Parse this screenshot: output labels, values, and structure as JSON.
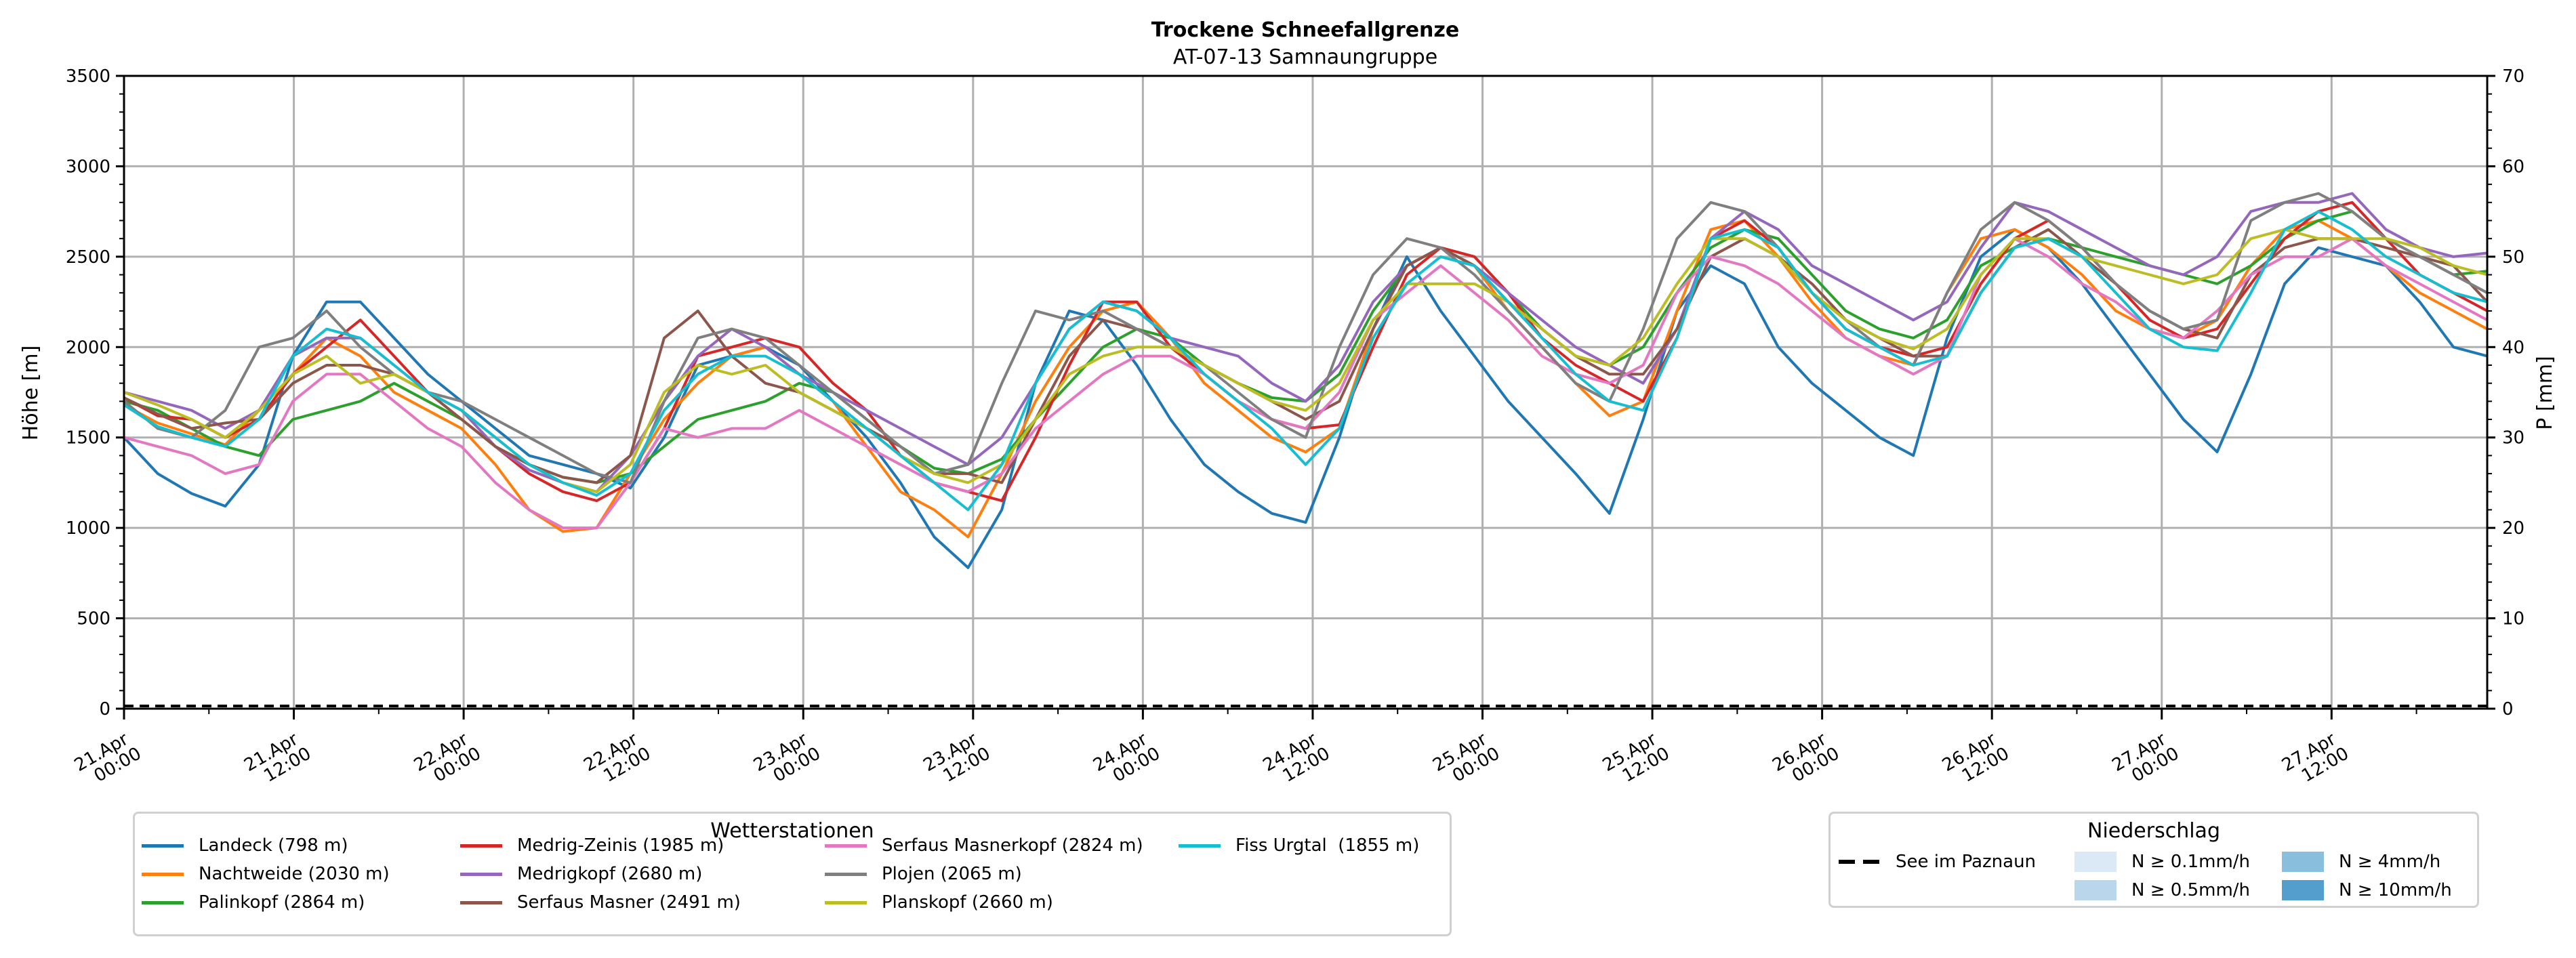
{
  "chart_data": {
    "type": "line",
    "title": "Trockene Schneefallgrenze",
    "subtitle": "AT-07-13 Samnaungruppe",
    "ylabel": "Höhe [m]",
    "ylabel_right": "P [mm]",
    "xlabel": "",
    "ylim": [
      0,
      3500
    ],
    "ylim_right": [
      0,
      70
    ],
    "yticks": [
      "0",
      "500",
      "1000",
      "1500",
      "2000",
      "2500",
      "3000",
      "3500"
    ],
    "yticks_right": [
      "0",
      "10",
      "20",
      "30",
      "40",
      "50",
      "60",
      "70"
    ],
    "x_unit": "hours since 21.Apr 00:00",
    "xlim_hours": [
      0,
      167
    ],
    "xticks": [
      {
        "hour": 0,
        "line1": "21.Apr",
        "line2": "00:00"
      },
      {
        "hour": 12,
        "line1": "21.Apr",
        "line2": "12:00"
      },
      {
        "hour": 24,
        "line1": "22.Apr",
        "line2": "00:00"
      },
      {
        "hour": 36,
        "line1": "22.Apr",
        "line2": "12:00"
      },
      {
        "hour": 48,
        "line1": "23.Apr",
        "line2": "00:00"
      },
      {
        "hour": 60,
        "line1": "23.Apr",
        "line2": "12:00"
      },
      {
        "hour": 72,
        "line1": "24.Apr",
        "line2": "00:00"
      },
      {
        "hour": 84,
        "line1": "24.Apr",
        "line2": "12:00"
      },
      {
        "hour": 96,
        "line1": "25.Apr",
        "line2": "00:00"
      },
      {
        "hour": 108,
        "line1": "25.Apr",
        "line2": "12:00"
      },
      {
        "hour": 120,
        "line1": "26.Apr",
        "line2": "00:00"
      },
      {
        "hour": 132,
        "line1": "26.Apr",
        "line2": "12:00"
      },
      {
        "hour": 144,
        "line1": "27.Apr",
        "line2": "00:00"
      },
      {
        "hour": 156,
        "line1": "27.Apr",
        "line2": "12:00"
      }
    ],
    "grid": true,
    "x_step_hours": 3,
    "series": [
      {
        "name": "Landeck (798 m)",
        "color": "#1f77b4",
        "values": [
          1500,
          1300,
          1190,
          1120,
          1350,
          1950,
          2250,
          2250,
          2050,
          1850,
          1700,
          1550,
          1400,
          1350,
          1300,
          1220,
          1500,
          1900,
          1950,
          2000,
          1900,
          1700,
          1500,
          1250,
          950,
          780,
          1100,
          1800,
          2200,
          2150,
          1900,
          1600,
          1350,
          1200,
          1080,
          1030,
          1500,
          2100,
          2500,
          2200,
          1950,
          1700,
          1500,
          1300,
          1080,
          1600,
          2200,
          2450,
          2350,
          2000,
          1800,
          1650,
          1500,
          1400,
          2050,
          2500,
          2650,
          2550,
          2350,
          2100,
          1850,
          1600,
          1420,
          1850,
          2350,
          2550,
          2500,
          2450,
          2250,
          2000,
          1950
        ]
      },
      {
        "name": "Nachtweide (2030 m)",
        "color": "#ff7f0e",
        "values": [
          1680,
          1580,
          1520,
          1460,
          1650,
          1850,
          2050,
          1950,
          1750,
          1650,
          1550,
          1350,
          1100,
          980,
          1000,
          1300,
          1600,
          1800,
          1950,
          2000,
          1850,
          1700,
          1450,
          1200,
          1100,
          950,
          1300,
          1700,
          2000,
          2200,
          2250,
          2050,
          1800,
          1650,
          1500,
          1420,
          1550,
          2100,
          2450,
          2550,
          2450,
          2200,
          2000,
          1800,
          1620,
          1700,
          2200,
          2650,
          2700,
          2500,
          2250,
          2050,
          1950,
          1900,
          2300,
          2600,
          2650,
          2550,
          2400,
          2200,
          2100,
          2050,
          2150,
          2450,
          2650,
          2700,
          2600,
          2450,
          2300,
          2200,
          2100
        ]
      },
      {
        "name": "Palinkopf (2864 m)",
        "color": "#2ca02c",
        "values": [
          1700,
          1650,
          1550,
          1450,
          1400,
          1600,
          1650,
          1700,
          1800,
          1700,
          1600,
          1450,
          1350,
          1280,
          1250,
          1300,
          1450,
          1600,
          1650,
          1700,
          1800,
          1750,
          1600,
          1450,
          1330,
          1300,
          1380,
          1600,
          1800,
          2000,
          2100,
          2050,
          1900,
          1800,
          1720,
          1700,
          1850,
          2200,
          2450,
          2550,
          2500,
          2300,
          2100,
          1950,
          1900,
          2000,
          2300,
          2550,
          2650,
          2600,
          2400,
          2200,
          2100,
          2050,
          2150,
          2450,
          2550,
          2600,
          2550,
          2500,
          2450,
          2400,
          2350,
          2450,
          2600,
          2700,
          2750,
          2600,
          2500,
          2400,
          2420
        ]
      },
      {
        "name": "Medrig-Zeinis (1985 m)",
        "color": "#d62728",
        "values": [
          1720,
          1620,
          1600,
          1500,
          1600,
          1850,
          2000,
          2150,
          1950,
          1750,
          1600,
          1450,
          1300,
          1200,
          1150,
          1250,
          1550,
          1950,
          2000,
          2050,
          2000,
          1800,
          1650,
          1400,
          1250,
          1200,
          1150,
          1500,
          1900,
          2250,
          2250,
          2000,
          1850,
          1700,
          1600,
          1550,
          1570,
          2000,
          2400,
          2550,
          2500,
          2300,
          2050,
          1900,
          1800,
          1700,
          2050,
          2600,
          2700,
          2550,
          2300,
          2100,
          2000,
          1950,
          2000,
          2350,
          2600,
          2700,
          2550,
          2350,
          2150,
          2050,
          2100,
          2350,
          2600,
          2750,
          2800,
          2600,
          2400,
          2300,
          2200
        ]
      },
      {
        "name": "Medrigkopf (2680 m)",
        "color": "#9467bd",
        "values": [
          1750,
          1700,
          1650,
          1550,
          1650,
          1950,
          2050,
          2050,
          1900,
          1750,
          1650,
          1450,
          1320,
          1250,
          1200,
          1400,
          1700,
          1950,
          2100,
          2000,
          1850,
          1750,
          1650,
          1550,
          1450,
          1350,
          1500,
          1800,
          2100,
          2250,
          2200,
          2050,
          2000,
          1950,
          1800,
          1700,
          1900,
          2250,
          2450,
          2550,
          2450,
          2300,
          2150,
          2000,
          1900,
          1800,
          2100,
          2600,
          2750,
          2650,
          2450,
          2350,
          2250,
          2150,
          2250,
          2550,
          2800,
          2750,
          2650,
          2550,
          2450,
          2400,
          2500,
          2750,
          2800,
          2800,
          2850,
          2650,
          2550,
          2500,
          2520
        ]
      },
      {
        "name": "Serfaus Masner (2491 m)",
        "color": "#8c564b",
        "values": [
          1720,
          1630,
          1550,
          1580,
          1600,
          1800,
          1900,
          1900,
          1850,
          1750,
          1600,
          1450,
          1350,
          1280,
          1250,
          1400,
          2050,
          2200,
          1950,
          1800,
          1750,
          1650,
          1550,
          1450,
          1300,
          1300,
          1250,
          1600,
          1950,
          2150,
          2100,
          2000,
          1900,
          1800,
          1700,
          1600,
          1700,
          2100,
          2450,
          2550,
          2450,
          2250,
          2100,
          1950,
          1850,
          1850,
          2100,
          2500,
          2600,
          2500,
          2350,
          2150,
          2050,
          1950,
          1950,
          2300,
          2550,
          2650,
          2500,
          2350,
          2200,
          2100,
          2050,
          2400,
          2550,
          2600,
          2600,
          2550,
          2500,
          2450,
          2250
        ]
      },
      {
        "name": "Serfaus Masnerkopf (2824 m)",
        "color": "#e377c2",
        "values": [
          1500,
          1450,
          1400,
          1300,
          1350,
          1700,
          1850,
          1850,
          1700,
          1550,
          1450,
          1250,
          1100,
          1000,
          1000,
          1250,
          1550,
          1500,
          1550,
          1550,
          1650,
          1550,
          1450,
          1350,
          1250,
          1200,
          1300,
          1550,
          1700,
          1850,
          1950,
          1950,
          1850,
          1700,
          1600,
          1550,
          1750,
          2150,
          2300,
          2450,
          2300,
          2150,
          1950,
          1850,
          1800,
          1900,
          2300,
          2500,
          2450,
          2350,
          2200,
          2050,
          1950,
          1850,
          1950,
          2400,
          2600,
          2500,
          2350,
          2250,
          2100,
          2050,
          2200,
          2400,
          2500,
          2500,
          2600,
          2450,
          2350,
          2250,
          2150
        ]
      },
      {
        "name": "Plojen (2065 m)",
        "color": "#7f7f7f",
        "values": [
          1700,
          1550,
          1500,
          1650,
          2000,
          2050,
          2200,
          2000,
          1850,
          1750,
          1700,
          1600,
          1500,
          1400,
          1300,
          1250,
          1700,
          2050,
          2100,
          2050,
          1900,
          1750,
          1600,
          1450,
          1300,
          1350,
          1800,
          2200,
          2150,
          2200,
          2100,
          2000,
          1900,
          1750,
          1600,
          1500,
          2000,
          2400,
          2600,
          2550,
          2400,
          2200,
          2000,
          1800,
          1700,
          2100,
          2600,
          2800,
          2750,
          2550,
          2300,
          2150,
          2000,
          1900,
          2300,
          2650,
          2800,
          2700,
          2550,
          2350,
          2200,
          2100,
          2150,
          2700,
          2800,
          2850,
          2750,
          2600,
          2500,
          2400,
          2300
        ]
      },
      {
        "name": "Planskopf (2660 m)",
        "color": "#bcbd22",
        "values": [
          1750,
          1680,
          1600,
          1500,
          1650,
          1850,
          1950,
          1800,
          1850,
          1750,
          1650,
          1500,
          1350,
          1250,
          1200,
          1350,
          1750,
          1900,
          1850,
          1900,
          1750,
          1650,
          1550,
          1400,
          1300,
          1250,
          1350,
          1600,
          1850,
          1950,
          2000,
          2000,
          1900,
          1800,
          1700,
          1650,
          1800,
          2150,
          2350,
          2350,
          2350,
          2250,
          2100,
          1950,
          1900,
          2050,
          2350,
          2600,
          2600,
          2500,
          2300,
          2150,
          2050,
          1990,
          2100,
          2400,
          2600,
          2600,
          2500,
          2450,
          2400,
          2350,
          2400,
          2600,
          2650,
          2600,
          2600,
          2600,
          2550,
          2450,
          2400
        ]
      },
      {
        "name": "Fiss Urgtal  (1855 m)",
        "color": "#17becf",
        "values": [
          1680,
          1560,
          1500,
          1450,
          1600,
          1950,
          2100,
          2050,
          1900,
          1750,
          1650,
          1500,
          1350,
          1250,
          1180,
          1300,
          1650,
          1850,
          1950,
          1950,
          1850,
          1700,
          1550,
          1400,
          1250,
          1100,
          1350,
          1800,
          2100,
          2250,
          2200,
          2050,
          1850,
          1700,
          1550,
          1350,
          1550,
          2050,
          2350,
          2500,
          2450,
          2250,
          2050,
          1850,
          1700,
          1650,
          2050,
          2600,
          2650,
          2550,
          2300,
          2100,
          2000,
          1900,
          1950,
          2300,
          2550,
          2600,
          2500,
          2300,
          2100,
          2000,
          1980,
          2300,
          2650,
          2750,
          2650,
          2500,
          2400,
          2300,
          2250
        ]
      }
    ],
    "reference_line": {
      "name": "See im Paznaun",
      "value": 0,
      "style": "dashed",
      "color": "#000000"
    },
    "precip_legend": [
      {
        "label": "N ≥ 0.1mm/h",
        "color": "#dbe9f6"
      },
      {
        "label": "N ≥ 0.5mm/h",
        "color": "#bad6eb"
      },
      {
        "label": "N ≥ 4mm/h",
        "color": "#89bedc"
      },
      {
        "label": "N ≥ 10mm/h",
        "color": "#539ecd"
      }
    ],
    "legend_stations_title": "Wetterstationen",
    "legend_precip_title": "Niederschlag",
    "legend_placement": "bottom"
  }
}
